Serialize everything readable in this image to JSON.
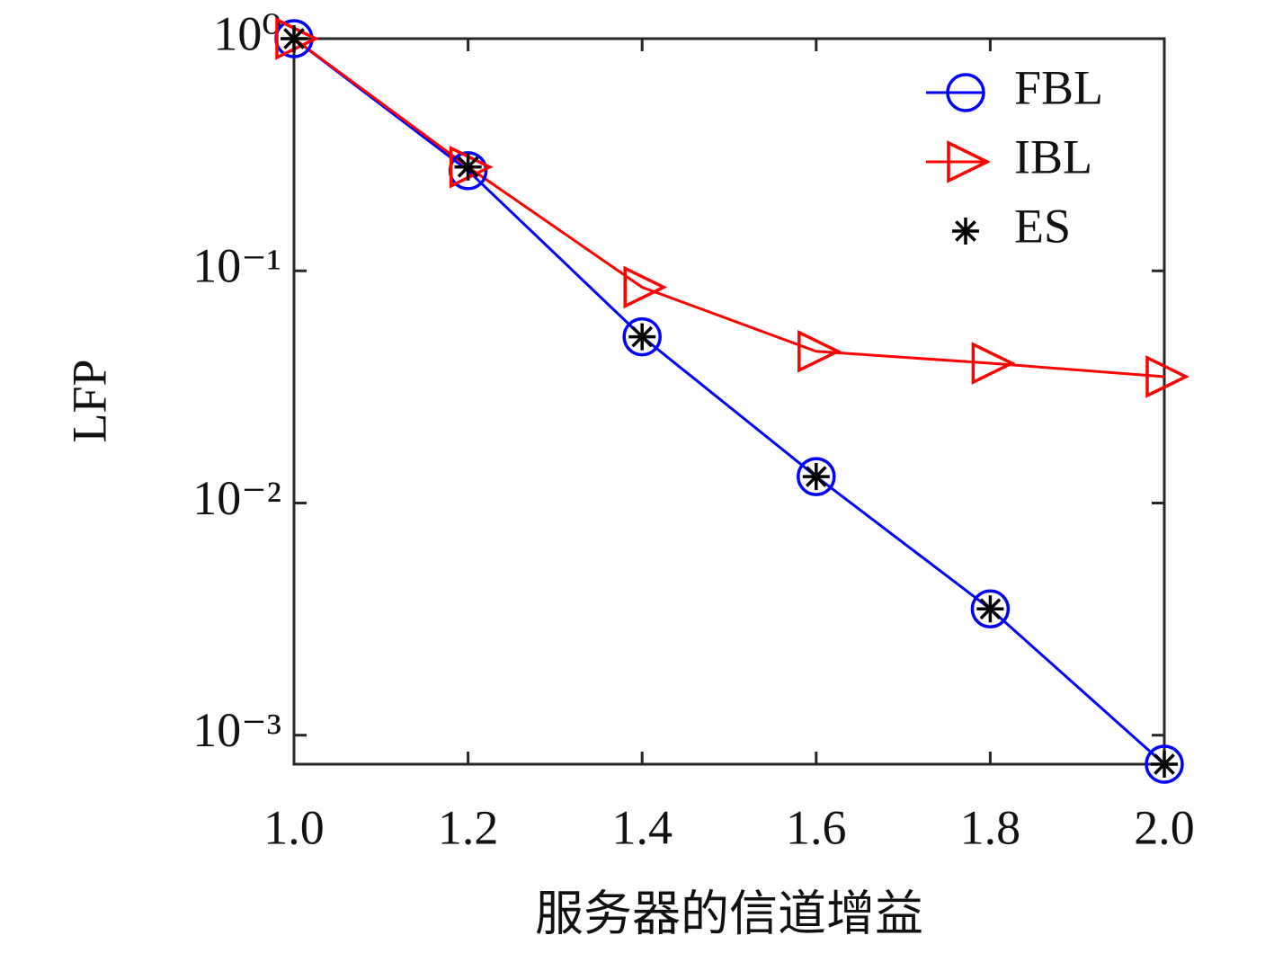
{
  "chart_data": {
    "type": "line",
    "y_label": "LFP",
    "x_label": "服务器的信道增益",
    "x": [
      1.0,
      1.2,
      1.4,
      1.6,
      1.8,
      2.0
    ],
    "xlim": [
      1.0,
      2.0
    ],
    "xticks": [
      {
        "value": 1.0,
        "label": "1.0"
      },
      1.2,
      1.4,
      1.6,
      1.8,
      {
        "value": 2.0,
        "label": "2.0"
      }
    ],
    "ylim": [
      0.00075,
      1
    ],
    "yticks": [
      {
        "value": 1,
        "label": "10⁰"
      },
      {
        "value": 0.1,
        "label": "10⁻¹"
      },
      {
        "value": 0.01,
        "label": "10⁻²"
      },
      {
        "value": 0.001,
        "label": "10⁻³"
      }
    ],
    "log_y": true,
    "grid": false,
    "legend": "northeast",
    "series": [
      {
        "name": "FBL",
        "color": "#0000ff",
        "marker": "circle",
        "line": true,
        "values": [
          1,
          0.27,
          0.052,
          0.013,
          0.0035,
          0.00075
        ]
      },
      {
        "name": "IBL",
        "color": "#ff0000",
        "marker": "triangle-right",
        "line": true,
        "values": [
          1,
          0.28,
          0.085,
          0.045,
          0.04,
          0.035
        ]
      },
      {
        "name": "ES",
        "color": "#000000",
        "marker": "asterisk",
        "line": false,
        "values": [
          1,
          0.28,
          0.052,
          0.013,
          0.0035,
          0.00075
        ]
      }
    ]
  }
}
